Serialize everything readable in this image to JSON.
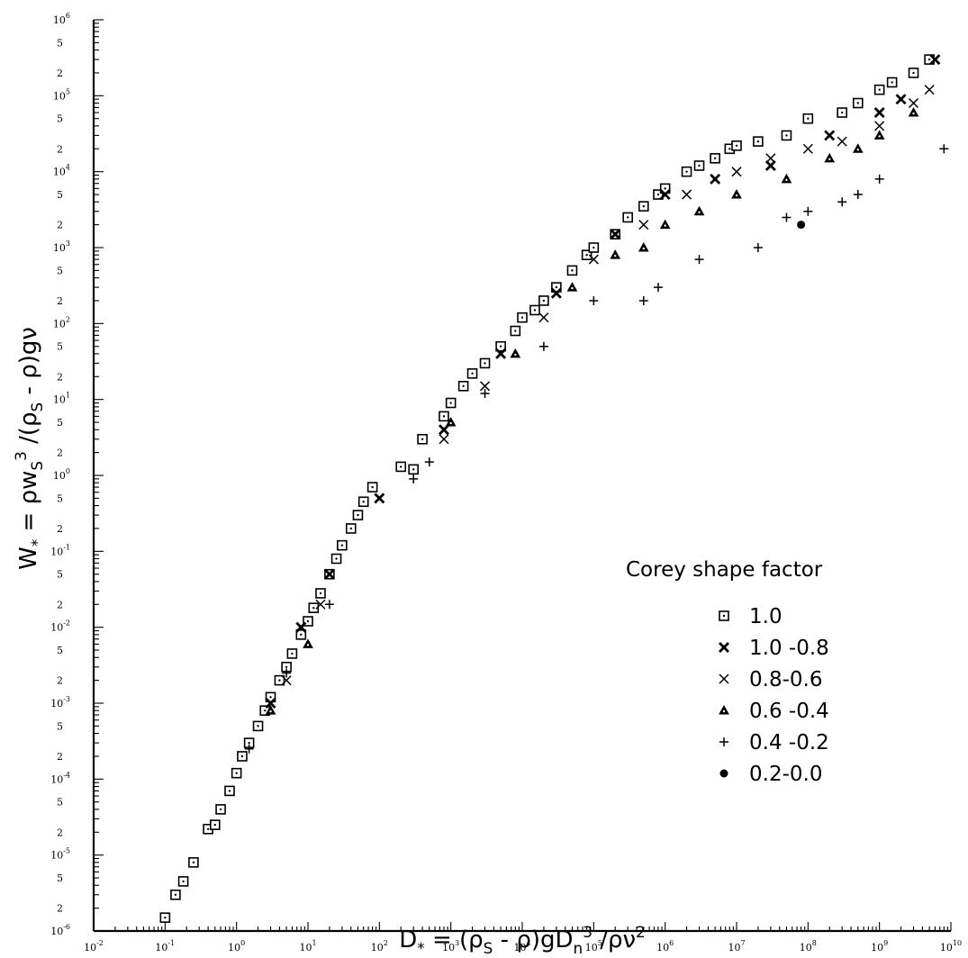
{
  "chart_data": {
    "type": "scatter",
    "title": "",
    "scale": {
      "x": "log",
      "y": "log"
    },
    "xlim": [
      0.01,
      10000000000
    ],
    "ylim": [
      1e-06,
      1000000
    ],
    "xlabel": {
      "parts": [
        {
          "t": "D",
          "s": "n"
        },
        {
          "t": "*",
          "s": "sub"
        },
        {
          "t": " = (ρ",
          "s": "n"
        },
        {
          "t": "S",
          "s": "sub"
        },
        {
          "t": " - ρ)gD",
          "s": "n"
        },
        {
          "t": "n",
          "s": "sub"
        },
        {
          "t": "3",
          "s": "sup"
        },
        {
          "t": " /ρν",
          "s": "n"
        },
        {
          "t": "2",
          "s": "sup"
        }
      ]
    },
    "ylabel": {
      "parts": [
        {
          "t": "W",
          "s": "n"
        },
        {
          "t": "*",
          "s": "sub"
        },
        {
          "t": " = ρw",
          "s": "n"
        },
        {
          "t": "S",
          "s": "sub"
        },
        {
          "t": "3",
          "s": "sup"
        },
        {
          "t": " /(ρ",
          "s": "n"
        },
        {
          "t": "S",
          "s": "sub"
        },
        {
          "t": " - ρ)gν",
          "s": "n"
        }
      ]
    },
    "x_tick_labels": [
      {
        "base": "10",
        "exp": "-2"
      },
      {
        "base": "10",
        "exp": "-1"
      },
      {
        "base": "10",
        "exp": "0"
      },
      {
        "base": "10",
        "exp": "1"
      },
      {
        "base": "10",
        "exp": "2"
      },
      {
        "base": "10",
        "exp": "3"
      },
      {
        "base": "10",
        "exp": "4"
      },
      {
        "base": "10",
        "exp": "5"
      },
      {
        "base": "10",
        "exp": "6"
      },
      {
        "base": "10",
        "exp": "7"
      },
      {
        "base": "10",
        "exp": "8"
      },
      {
        "base": "10",
        "exp": "9"
      },
      {
        "base": "10",
        "exp": "10"
      }
    ],
    "y_tick_labels": [
      {
        "base": "10",
        "exp": "-6"
      },
      {
        "base": "10",
        "exp": "-5"
      },
      {
        "base": "10",
        "exp": "-4"
      },
      {
        "base": "10",
        "exp": "-3"
      },
      {
        "base": "10",
        "exp": "-2"
      },
      {
        "base": "10",
        "exp": "-1"
      },
      {
        "base": "10",
        "exp": "0"
      },
      {
        "base": "10",
        "exp": "1"
      },
      {
        "base": "10",
        "exp": "2"
      },
      {
        "base": "10",
        "exp": "3"
      },
      {
        "base": "10",
        "exp": "4"
      },
      {
        "base": "10",
        "exp": "5"
      },
      {
        "base": "10",
        "exp": "6"
      }
    ],
    "y_minor_labels": [
      "2",
      "5"
    ],
    "legend": {
      "title": "Corey shape factor",
      "placement": "right",
      "entries": [
        {
          "label": "1.0",
          "marker": "square-dot"
        },
        {
          "label": "1.0 -0.8",
          "marker": "bold-x"
        },
        {
          "label": "0.8-0.6",
          "marker": "x"
        },
        {
          "label": "0.6 -0.4",
          "marker": "triangle"
        },
        {
          "label": "0.4 -0.2",
          "marker": "plus"
        },
        {
          "label": "0.2-0.0",
          "marker": "filled-circle"
        }
      ]
    },
    "series": [
      {
        "name": "1.0",
        "marker": "square-dot",
        "points": [
          [
            0.1,
            1.5e-06
          ],
          [
            0.14,
            3e-06
          ],
          [
            0.18,
            4.5e-06
          ],
          [
            0.25,
            8e-06
          ],
          [
            0.4,
            2.2e-05
          ],
          [
            0.5,
            2.5e-05
          ],
          [
            0.6,
            4e-05
          ],
          [
            0.8,
            7e-05
          ],
          [
            1.0,
            0.00012
          ],
          [
            1.2,
            0.0002
          ],
          [
            1.5,
            0.0003
          ],
          [
            2,
            0.0005
          ],
          [
            2.5,
            0.0008
          ],
          [
            3,
            0.0012
          ],
          [
            4,
            0.002
          ],
          [
            5,
            0.003
          ],
          [
            6,
            0.0045
          ],
          [
            8,
            0.008
          ],
          [
            10,
            0.012
          ],
          [
            12,
            0.018
          ],
          [
            15,
            0.028
          ],
          [
            20,
            0.05
          ],
          [
            25,
            0.08
          ],
          [
            30,
            0.12
          ],
          [
            40,
            0.2
          ],
          [
            50,
            0.3
          ],
          [
            60,
            0.45
          ],
          [
            80,
            0.7
          ],
          [
            200,
            1.3
          ],
          [
            300,
            1.2
          ],
          [
            400,
            3
          ],
          [
            800,
            6
          ],
          [
            1000,
            9
          ],
          [
            1500,
            15
          ],
          [
            2000,
            22
          ],
          [
            3000,
            30
          ],
          [
            5000,
            50
          ],
          [
            8000,
            80
          ],
          [
            10000,
            120
          ],
          [
            15000,
            150
          ],
          [
            20000,
            200
          ],
          [
            30000,
            300
          ],
          [
            50000,
            500
          ],
          [
            80000,
            800
          ],
          [
            100000,
            1000
          ],
          [
            200000,
            1500
          ],
          [
            300000,
            2500
          ],
          [
            500000,
            3500
          ],
          [
            800000,
            5000
          ],
          [
            1000000,
            6000
          ],
          [
            2000000,
            10000
          ],
          [
            3000000,
            12000
          ],
          [
            5000000,
            15000
          ],
          [
            8000000,
            20000
          ],
          [
            10000000,
            22000
          ],
          [
            20000000,
            25000
          ],
          [
            50000000,
            30000
          ],
          [
            100000000,
            50000
          ],
          [
            300000000,
            60000
          ],
          [
            500000000,
            80000
          ],
          [
            1000000000,
            120000
          ],
          [
            1500000000,
            150000
          ],
          [
            3000000000,
            200000
          ],
          [
            5000000000,
            300000
          ]
        ]
      },
      {
        "name": "1.0 -0.8",
        "marker": "bold-x",
        "points": [
          [
            3,
            0.001
          ],
          [
            8,
            0.01
          ],
          [
            20,
            0.05
          ],
          [
            100,
            0.5
          ],
          [
            800,
            4
          ],
          [
            5000,
            40
          ],
          [
            30000,
            250
          ],
          [
            200000,
            1500
          ],
          [
            1000000,
            5000
          ],
          [
            5000000,
            8000
          ],
          [
            30000000,
            12000
          ],
          [
            200000000,
            30000
          ],
          [
            1000000000,
            60000
          ],
          [
            2000000000,
            90000
          ],
          [
            6000000000,
            300000
          ]
        ]
      },
      {
        "name": "0.8-0.6",
        "marker": "x",
        "points": [
          [
            5,
            0.002
          ],
          [
            15,
            0.02
          ],
          [
            800,
            3
          ],
          [
            3000,
            15
          ],
          [
            20000,
            120
          ],
          [
            100000,
            700
          ],
          [
            500000,
            2000
          ],
          [
            2000000,
            5000
          ],
          [
            10000000,
            10000
          ],
          [
            30000000,
            15000
          ],
          [
            100000000,
            20000
          ],
          [
            300000000,
            25000
          ],
          [
            1000000000,
            40000
          ],
          [
            3000000000,
            80000
          ],
          [
            5000000000,
            120000
          ]
        ]
      },
      {
        "name": "0.6 -0.4",
        "marker": "triangle",
        "points": [
          [
            3,
            0.0008
          ],
          [
            10,
            0.006
          ],
          [
            1000,
            5
          ],
          [
            8000,
            40
          ],
          [
            50000,
            300
          ],
          [
            200000,
            800
          ],
          [
            500000,
            1000
          ],
          [
            1000000,
            2000
          ],
          [
            3000000,
            3000
          ],
          [
            10000000,
            5000
          ],
          [
            50000000,
            8000
          ],
          [
            200000000,
            15000
          ],
          [
            500000000,
            20000
          ],
          [
            1000000000,
            30000
          ],
          [
            3000000000,
            60000
          ]
        ]
      },
      {
        "name": "0.4 -0.2",
        "marker": "plus",
        "points": [
          [
            1.5,
            0.00025
          ],
          [
            5,
            0.0025
          ],
          [
            20,
            0.02
          ],
          [
            300,
            0.9
          ],
          [
            500,
            1.5
          ],
          [
            3000,
            12
          ],
          [
            20000,
            50
          ],
          [
            100000,
            200
          ],
          [
            500000,
            200
          ],
          [
            800000,
            300
          ],
          [
            3000000,
            700
          ],
          [
            20000000,
            1000
          ],
          [
            50000000,
            2500
          ],
          [
            100000000,
            3000
          ],
          [
            300000000,
            4000
          ],
          [
            500000000,
            5000
          ],
          [
            1000000000,
            8000
          ],
          [
            8000000000,
            20000
          ]
        ]
      },
      {
        "name": "0.2-0.0",
        "marker": "filled-circle",
        "points": [
          [
            80000000,
            2000
          ]
        ]
      }
    ]
  }
}
